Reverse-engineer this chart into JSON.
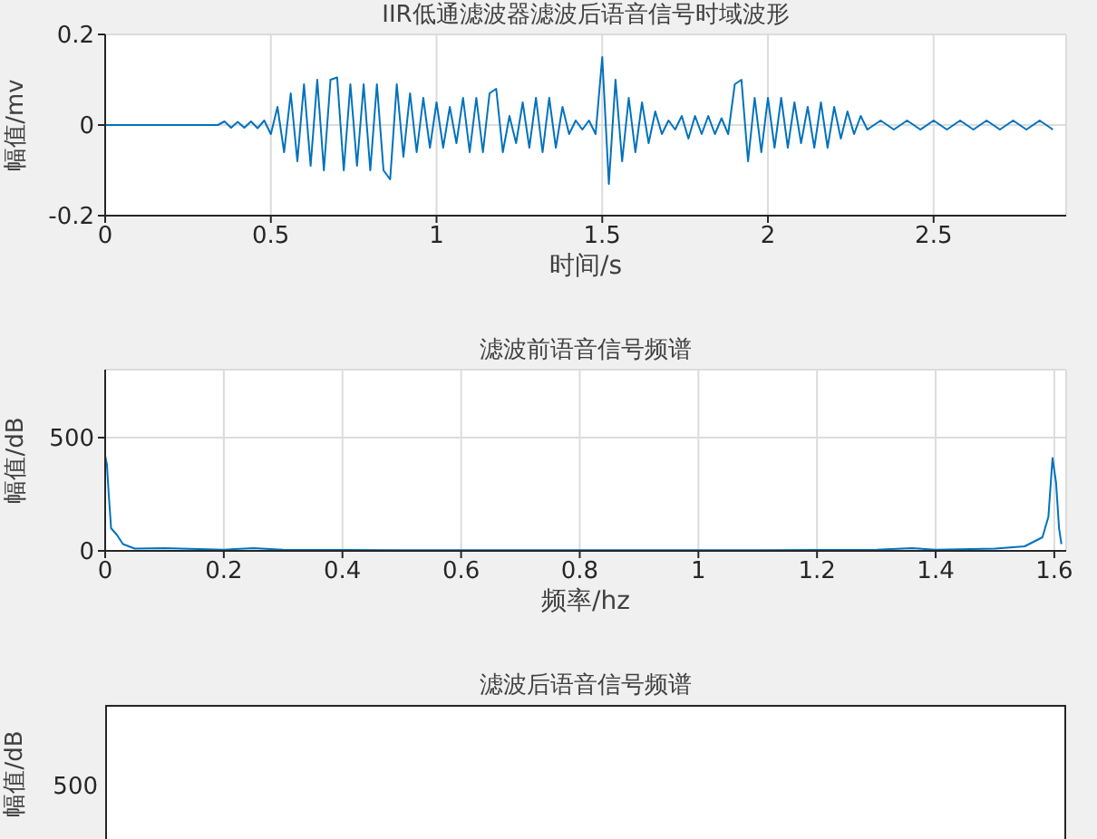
{
  "chart_data": [
    {
      "type": "line",
      "title": "IIR低通滤波器滤波后语音信号时域波形",
      "xlabel": "时间/s",
      "ylabel": "幅值/mv",
      "xlim": [
        0,
        2.9
      ],
      "xticks": [
        0,
        0.5,
        1,
        1.5,
        2,
        2.5
      ],
      "ylim": [
        -0.2,
        0.2
      ],
      "yticks": [
        -0.2,
        0,
        0.2
      ],
      "grid": true,
      "series": [
        {
          "color": "#0072bd",
          "x": [
            0,
            0.34,
            0.36,
            0.38,
            0.4,
            0.42,
            0.44,
            0.46,
            0.48,
            0.5,
            0.52,
            0.54,
            0.56,
            0.58,
            0.6,
            0.62,
            0.64,
            0.66,
            0.68,
            0.7,
            0.72,
            0.74,
            0.76,
            0.78,
            0.8,
            0.82,
            0.84,
            0.86,
            0.88,
            0.9,
            0.92,
            0.94,
            0.96,
            0.98,
            1,
            1.02,
            1.04,
            1.06,
            1.08,
            1.1,
            1.12,
            1.14,
            1.16,
            1.18,
            1.2,
            1.22,
            1.24,
            1.26,
            1.28,
            1.3,
            1.32,
            1.34,
            1.36,
            1.38,
            1.4,
            1.42,
            1.44,
            1.46,
            1.48,
            1.5,
            1.52,
            1.54,
            1.56,
            1.58,
            1.6,
            1.62,
            1.64,
            1.66,
            1.68,
            1.7,
            1.72,
            1.74,
            1.76,
            1.78,
            1.8,
            1.82,
            1.84,
            1.86,
            1.88,
            1.9,
            1.92,
            1.94,
            1.96,
            1.98,
            2,
            2.02,
            2.04,
            2.06,
            2.08,
            2.1,
            2.12,
            2.14,
            2.16,
            2.18,
            2.2,
            2.22,
            2.24,
            2.26,
            2.28,
            2.3,
            2.34,
            2.38,
            2.42,
            2.46,
            2.5,
            2.54,
            2.58,
            2.62,
            2.66,
            2.7,
            2.74,
            2.78,
            2.82,
            2.86
          ],
          "values": [
            0,
            0,
            0.008,
            -0.006,
            0.007,
            -0.006,
            0.008,
            -0.007,
            0.01,
            -0.02,
            0.04,
            -0.06,
            0.07,
            -0.08,
            0.09,
            -0.09,
            0.1,
            -0.1,
            0.1,
            0.105,
            -0.1,
            0.09,
            -0.09,
            0.09,
            -0.1,
            0.09,
            -0.1,
            -0.12,
            0.09,
            -0.07,
            0.07,
            -0.06,
            0.06,
            -0.05,
            0.05,
            -0.05,
            0.04,
            -0.04,
            0.06,
            -0.06,
            0.06,
            -0.06,
            0.07,
            0.08,
            -0.06,
            0.02,
            -0.04,
            0.05,
            -0.05,
            0.06,
            -0.06,
            0.06,
            -0.05,
            0.04,
            -0.02,
            0.01,
            -0.01,
            0.01,
            -0.02,
            0.15,
            -0.13,
            0.1,
            -0.08,
            0.06,
            -0.06,
            0.05,
            -0.04,
            0.03,
            -0.02,
            0.01,
            -0.01,
            0.02,
            -0.03,
            0.02,
            -0.02,
            0.02,
            -0.02,
            0.015,
            -0.02,
            0.09,
            0.1,
            -0.08,
            0.06,
            -0.06,
            0.06,
            -0.05,
            0.06,
            -0.05,
            0.05,
            -0.04,
            0.04,
            -0.05,
            0.05,
            -0.05,
            0.04,
            -0.03,
            0.03,
            -0.02,
            0.02,
            -0.01,
            0.01,
            -0.01,
            0.01,
            -0.01,
            0.01,
            -0.01,
            0.01,
            -0.01,
            0.01,
            -0.01,
            0.01,
            -0.01,
            0.01,
            -0.01
          ]
        }
      ]
    },
    {
      "type": "line",
      "title": "滤波前语音信号频谱",
      "xlabel": "频率/hz",
      "ylabel": "幅值/dB",
      "xlim": [
        0,
        1.62
      ],
      "xticks": [
        0,
        0.2,
        0.4,
        0.6,
        0.8,
        1,
        1.2,
        1.4,
        1.6
      ],
      "ylim": [
        0,
        800
      ],
      "yticks": [
        0,
        500
      ],
      "grid": true,
      "series": [
        {
          "color": "#0072bd",
          "x": [
            0,
            0.003,
            0.006,
            0.01,
            0.02,
            0.03,
            0.05,
            0.1,
            0.2,
            0.25,
            0.3,
            0.5,
            0.8,
            1.1,
            1.3,
            1.36,
            1.4,
            1.5,
            1.55,
            1.58,
            1.59,
            1.597,
            1.603,
            1.608,
            1.612
          ],
          "values": [
            420,
            380,
            250,
            100,
            70,
            30,
            10,
            12,
            5,
            12,
            5,
            3,
            3,
            3,
            5,
            12,
            5,
            10,
            20,
            60,
            150,
            410,
            300,
            100,
            30
          ]
        }
      ]
    },
    {
      "type": "other",
      "title": "滤波后语音信号频谱",
      "ylabel": "幅值/dB",
      "annotations": [
        "500"
      ]
    }
  ]
}
